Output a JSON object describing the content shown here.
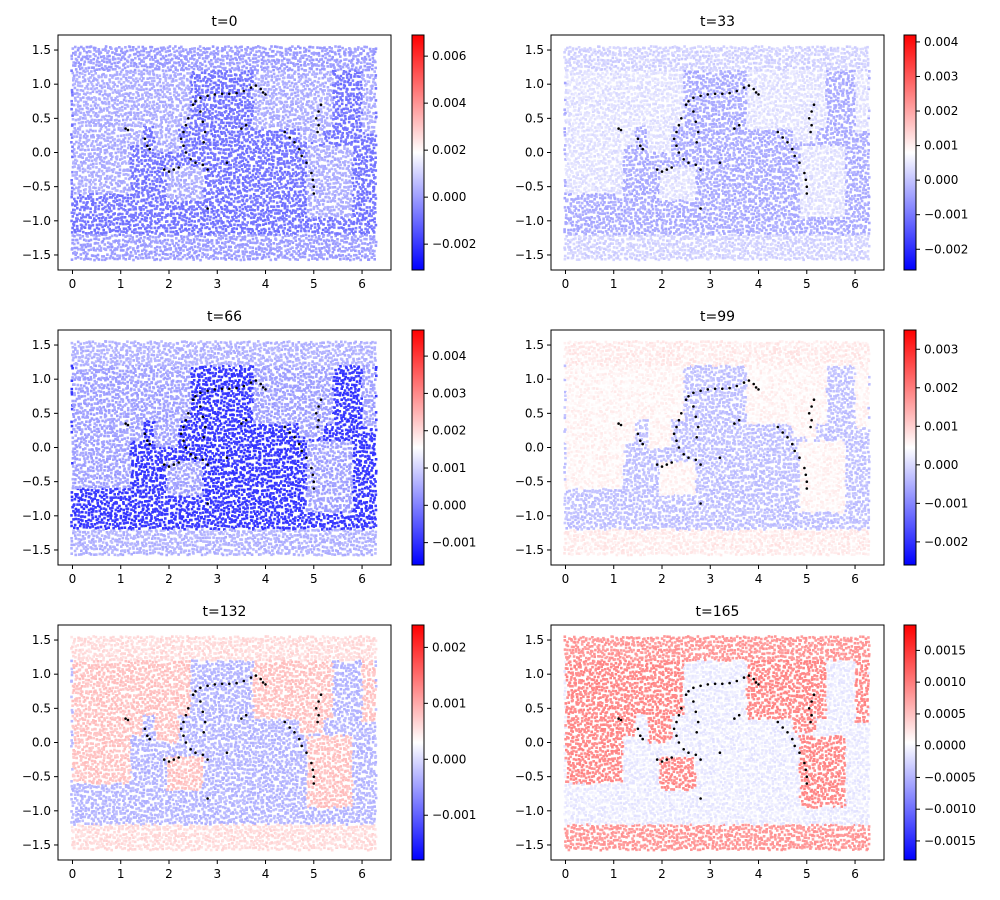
{
  "chart_data": [
    {
      "type": "scatter",
      "title": "t=0",
      "xlim": [
        -0.3,
        6.6
      ],
      "ylim": [
        -1.72,
        1.72
      ],
      "xticks": [
        "0",
        "1",
        "2",
        "3",
        "4",
        "5",
        "6"
      ],
      "yticks": [
        "1.5",
        "1.0",
        "0.5",
        "0.0",
        "−0.5",
        "−1.0",
        "−1.5"
      ],
      "colorbar": {
        "cmap": "bwr",
        "range": [
          -0.0031,
          0.0069
        ],
        "ticks": [
          "0.006",
          "0.004",
          "0.002",
          "0.000",
          "−0.002"
        ],
        "tick_values": [
          0.006,
          0.004,
          0.002,
          0.0,
          -0.002
        ]
      },
      "levels": {
        "land": 0.0003,
        "ocean": -0.0008,
        "polar": 0.0
      }
    },
    {
      "type": "scatter",
      "title": "t=33",
      "xlim": [
        -0.3,
        6.6
      ],
      "ylim": [
        -1.72,
        1.72
      ],
      "xticks": [
        "0",
        "1",
        "2",
        "3",
        "4",
        "5",
        "6"
      ],
      "yticks": [
        "1.5",
        "1.0",
        "0.5",
        "0.0",
        "−0.5",
        "−1.0",
        "−1.5"
      ],
      "colorbar": {
        "cmap": "bwr",
        "range": [
          -0.0026,
          0.0042
        ],
        "ticks": [
          "0.004",
          "0.003",
          "0.002",
          "0.001",
          "0.000",
          "−0.001",
          "−0.002"
        ],
        "tick_values": [
          0.004,
          0.003,
          0.002,
          0.001,
          0.0,
          -0.001,
          -0.002
        ]
      },
      "levels": {
        "land": 0.0004,
        "ocean": -0.0003,
        "polar": 0.0002
      }
    },
    {
      "type": "scatter",
      "title": "t=66",
      "xlim": [
        -0.3,
        6.6
      ],
      "ylim": [
        -1.72,
        1.72
      ],
      "xticks": [
        "0",
        "1",
        "2",
        "3",
        "4",
        "5",
        "6"
      ],
      "yticks": [
        "1.5",
        "1.0",
        "0.5",
        "0.0",
        "−0.5",
        "−1.0",
        "−1.5"
      ],
      "colorbar": {
        "cmap": "bwr",
        "range": [
          -0.0016,
          0.0047
        ],
        "ticks": [
          "0.004",
          "0.003",
          "0.002",
          "0.001",
          "0.000",
          "−0.001"
        ],
        "tick_values": [
          0.004,
          0.003,
          0.002,
          0.001,
          0.0,
          -0.001
        ]
      },
      "levels": {
        "land": 0.0004,
        "ocean": -0.0009,
        "polar": 0.0006
      }
    },
    {
      "type": "scatter",
      "title": "t=99",
      "xlim": [
        -0.3,
        6.6
      ],
      "ylim": [
        -1.72,
        1.72
      ],
      "xticks": [
        "0",
        "1",
        "2",
        "3",
        "4",
        "5",
        "6"
      ],
      "yticks": [
        "1.5",
        "1.0",
        "0.5",
        "0.0",
        "−0.5",
        "−1.0",
        "−1.5"
      ],
      "colorbar": {
        "cmap": "bwr",
        "range": [
          -0.0026,
          0.0035
        ],
        "ticks": [
          "0.003",
          "0.002",
          "0.001",
          "0.000",
          "−0.001",
          "−0.002"
        ],
        "tick_values": [
          0.003,
          0.002,
          0.001,
          0.0,
          -0.001,
          -0.002
        ]
      },
      "levels": {
        "land": 0.0006,
        "ocean": -0.0003,
        "polar": 0.0007
      }
    },
    {
      "type": "scatter",
      "title": "t=132",
      "xlim": [
        -0.3,
        6.6
      ],
      "ylim": [
        -1.72,
        1.72
      ],
      "xticks": [
        "0",
        "1",
        "2",
        "3",
        "4",
        "5",
        "6"
      ],
      "yticks": [
        "1.5",
        "1.0",
        "0.5",
        "0.0",
        "−0.5",
        "−1.0",
        "−1.5"
      ],
      "colorbar": {
        "cmap": "bwr",
        "range": [
          -0.0018,
          0.0024
        ],
        "ticks": [
          "0.002",
          "0.001",
          "0.000",
          "−0.001"
        ],
        "tick_values": [
          0.002,
          0.001,
          0.0,
          -0.001
        ]
      },
      "levels": {
        "land": 0.0008,
        "ocean": -0.0003,
        "polar": 0.0006
      }
    },
    {
      "type": "scatter",
      "title": "t=165",
      "xlim": [
        -0.3,
        6.6
      ],
      "ylim": [
        -1.72,
        1.72
      ],
      "xticks": [
        "0",
        "1",
        "2",
        "3",
        "4",
        "5",
        "6"
      ],
      "yticks": [
        "1.5",
        "1.0",
        "0.5",
        "0.0",
        "−0.5",
        "−1.0",
        "−1.5"
      ],
      "colorbar": {
        "cmap": "bwr",
        "range": [
          -0.0018,
          0.0019
        ],
        "ticks": [
          "0.0015",
          "0.0010",
          "0.0005",
          "0.0000",
          "−0.0005",
          "−0.0010",
          "−0.0015"
        ],
        "tick_values": [
          0.0015,
          0.001,
          0.0005,
          0.0,
          -0.0005,
          -0.001,
          -0.0015
        ]
      },
      "levels": {
        "land": 0.0009,
        "ocean": -0.0001,
        "polar": 0.0008
      }
    }
  ],
  "markers": [
    [
      2.5,
      0.7
    ],
    [
      2.55,
      0.75
    ],
    [
      2.65,
      0.8
    ],
    [
      2.8,
      0.83
    ],
    [
      2.95,
      0.85
    ],
    [
      3.1,
      0.86
    ],
    [
      3.25,
      0.86
    ],
    [
      3.4,
      0.87
    ],
    [
      3.55,
      0.9
    ],
    [
      3.7,
      0.95
    ],
    [
      3.8,
      0.98
    ],
    [
      3.9,
      0.93
    ],
    [
      3.95,
      0.88
    ],
    [
      4.0,
      0.85
    ],
    [
      2.4,
      0.5
    ],
    [
      2.35,
      0.4
    ],
    [
      2.3,
      0.3
    ],
    [
      2.25,
      0.2
    ],
    [
      2.3,
      0.1
    ],
    [
      2.35,
      0.0
    ],
    [
      2.45,
      -0.1
    ],
    [
      2.55,
      -0.15
    ],
    [
      2.7,
      -0.18
    ],
    [
      2.8,
      -0.25
    ],
    [
      2.65,
      0.6
    ],
    [
      2.7,
      0.45
    ],
    [
      2.75,
      0.3
    ],
    [
      2.72,
      0.15
    ],
    [
      1.9,
      -0.25
    ],
    [
      2.0,
      -0.28
    ],
    [
      2.1,
      -0.25
    ],
    [
      2.2,
      -0.22
    ],
    [
      1.1,
      0.35
    ],
    [
      1.15,
      0.33
    ],
    [
      1.5,
      0.2
    ],
    [
      1.55,
      0.1
    ],
    [
      1.6,
      0.05
    ],
    [
      3.2,
      -0.15
    ],
    [
      3.5,
      0.35
    ],
    [
      3.6,
      0.4
    ],
    [
      2.8,
      -0.82
    ],
    [
      4.4,
      0.3
    ],
    [
      4.5,
      0.22
    ],
    [
      4.6,
      0.15
    ],
    [
      4.7,
      0.05
    ],
    [
      4.75,
      -0.05
    ],
    [
      4.85,
      -0.15
    ],
    [
      4.95,
      -0.3
    ],
    [
      4.98,
      -0.4
    ],
    [
      5.0,
      -0.5
    ],
    [
      5.0,
      -0.6
    ],
    [
      5.05,
      0.5
    ],
    [
      5.1,
      0.6
    ],
    [
      5.15,
      0.7
    ],
    [
      5.1,
      0.4
    ],
    [
      5.08,
      0.3
    ]
  ]
}
